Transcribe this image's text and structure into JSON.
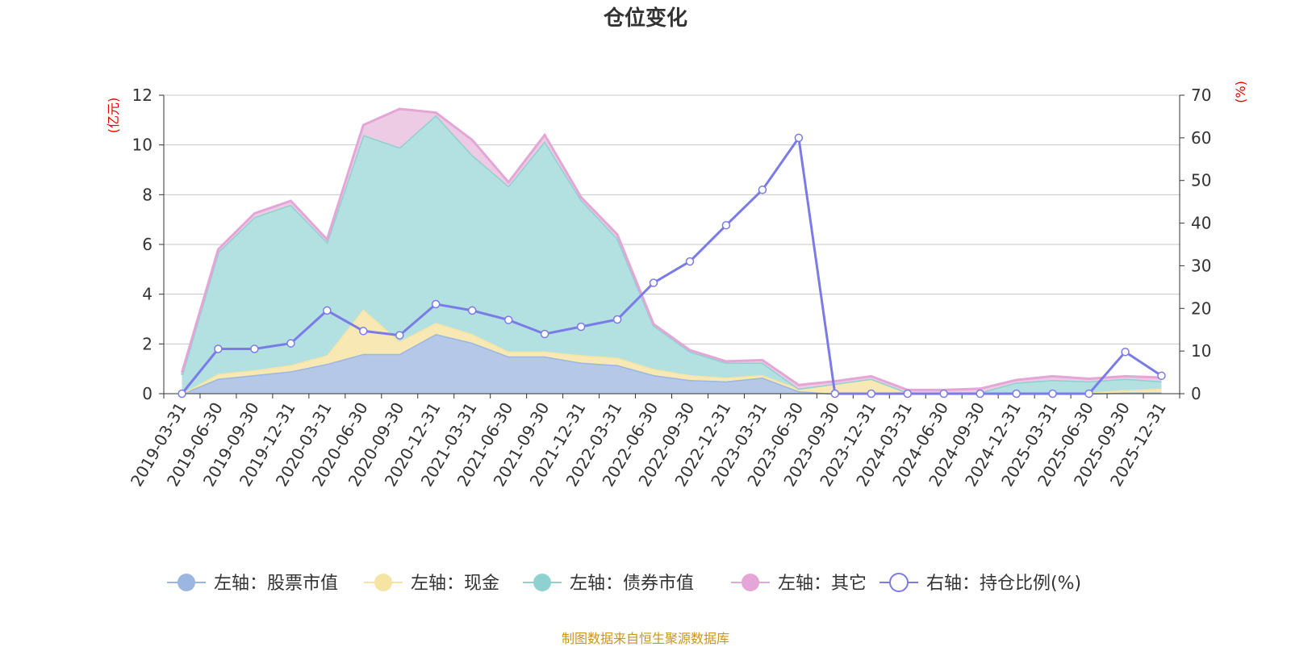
{
  "chart_data": {
    "type": "area",
    "title": "仓位变化",
    "source": "制图数据来自恒生聚源数据库",
    "left_axis": {
      "unit": "(亿元)",
      "ylim": [
        0,
        12
      ],
      "ticks": [
        "0",
        "2",
        "4",
        "6",
        "8",
        "10",
        "12"
      ]
    },
    "right_axis": {
      "unit": "(%)",
      "ylim": [
        0,
        70
      ],
      "ticks": [
        "0",
        "10",
        "20",
        "30",
        "40",
        "50",
        "60",
        "70"
      ]
    },
    "categories": [
      "2019-03-31",
      "2019-06-30",
      "2019-09-30",
      "2019-12-31",
      "2020-03-31",
      "2020-06-30",
      "2020-09-30",
      "2020-12-31",
      "2021-03-31",
      "2021-06-30",
      "2021-09-30",
      "2021-12-31",
      "2022-03-31",
      "2022-06-30",
      "2022-09-30",
      "2022-12-31",
      "2023-03-31",
      "2023-06-30",
      "2023-09-30",
      "2023-12-31",
      "2024-03-31",
      "2024-06-30",
      "2024-09-30",
      "2024-12-31",
      "2025-03-31",
      "2025-06-30",
      "2025-09-30",
      "2025-12-31"
    ],
    "series": [
      {
        "name": "左轴：股票市值",
        "axis": "left",
        "stacked": true,
        "color": "#9bb6e0",
        "fill": "#b5c8e8",
        "values": [
          0,
          0.6,
          0.75,
          0.9,
          1.2,
          1.6,
          1.6,
          2.4,
          2.05,
          1.5,
          1.5,
          1.25,
          1.15,
          0.75,
          0.55,
          0.5,
          0.65,
          0.1,
          0,
          0,
          0,
          0,
          0,
          0,
          0,
          0,
          0.05,
          0.05
        ]
      },
      {
        "name": "左轴：现金",
        "axis": "left",
        "stacked": true,
        "color": "#f5e4a3",
        "fill": "#f8e9b4",
        "values": [
          0,
          0.2,
          0.2,
          0.25,
          0.35,
          1.8,
          0.5,
          0.45,
          0.35,
          0.2,
          0.2,
          0.3,
          0.3,
          0.25,
          0.2,
          0.15,
          0.1,
          0.1,
          0.4,
          0.6,
          0.05,
          0.05,
          0.05,
          0.05,
          0.05,
          0.05,
          0.1,
          0.15
        ]
      },
      {
        "name": "左轴：债券市值",
        "axis": "left",
        "stacked": true,
        "color": "#8fd0d0",
        "fill": "#b3e0e0",
        "values": [
          0.75,
          4.9,
          6.15,
          6.45,
          4.55,
          7.0,
          7.8,
          8.35,
          7.2,
          6.65,
          8.45,
          6.25,
          4.8,
          1.75,
          0.95,
          0.6,
          0.5,
          0,
          0,
          0,
          0,
          0,
          0,
          0.4,
          0.5,
          0.45,
          0.45,
          0.3
        ]
      },
      {
        "name": "左轴：其它",
        "axis": "left",
        "stacked": true,
        "color": "#e4a6d6",
        "fill": "#eecbe4",
        "values": [
          0.1,
          0.1,
          0.15,
          0.15,
          0.1,
          0.4,
          1.55,
          0.1,
          0.6,
          0.15,
          0.25,
          0.1,
          0.15,
          0.05,
          0.05,
          0.05,
          0.1,
          0.15,
          0.1,
          0.1,
          0.1,
          0.1,
          0.15,
          0.1,
          0.15,
          0.1,
          0.1,
          0.15
        ]
      },
      {
        "name": "右轴：持仓比例(%)",
        "axis": "right",
        "type": "line",
        "color": "#7b7be8",
        "values": [
          0,
          10.5,
          10.5,
          11.8,
          19.5,
          14.7,
          13.7,
          21,
          19.5,
          17.3,
          14,
          15.7,
          17.4,
          26,
          31,
          39.5,
          47.8,
          60,
          0,
          0,
          0,
          0,
          0,
          0,
          0,
          0,
          9.8,
          4.2
        ]
      }
    ]
  }
}
